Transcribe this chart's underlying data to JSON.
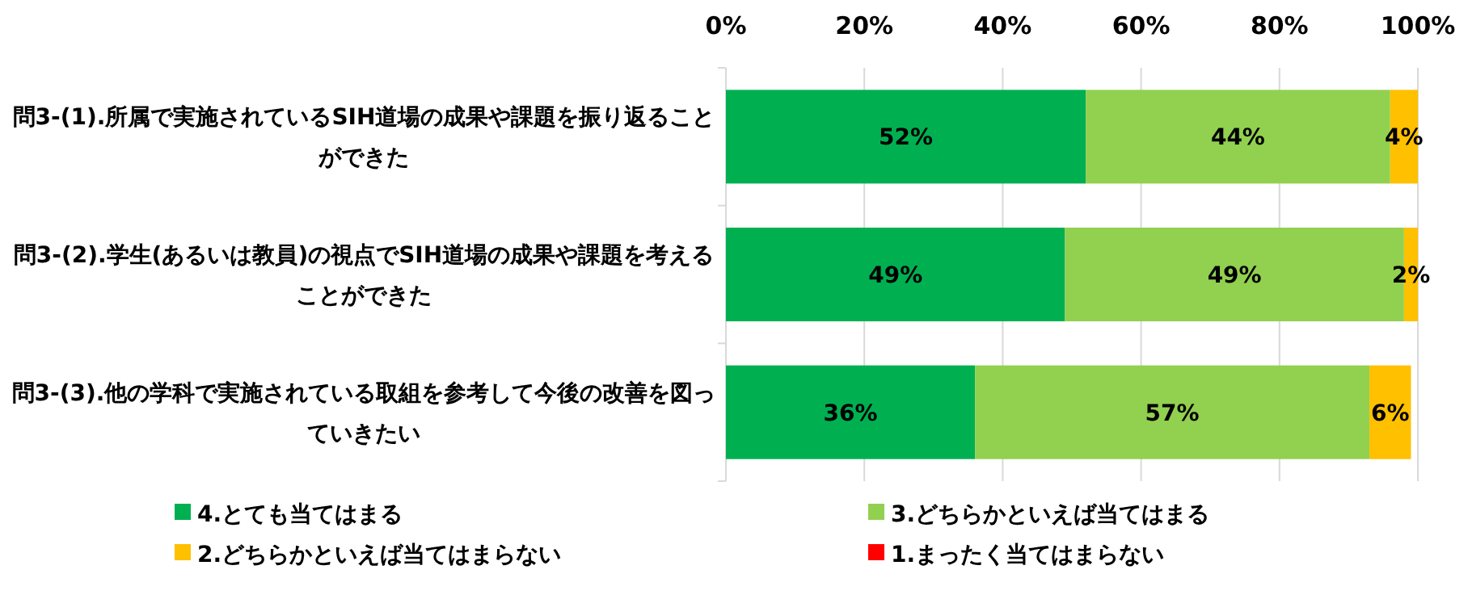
{
  "chart_data": {
    "type": "bar",
    "orientation": "horizontal",
    "stacked": true,
    "categories": [
      "問3-(1).所属で実施されているSIH道場の成果や課題を振り返ることができた",
      "問3-(2).学生(あるいは教員)の視点でSIH道場の成果や課題を考えることができた",
      "問3-(3).他の学科で実施されている取組を参考して今後の改善を図っていきたい"
    ],
    "series": [
      {
        "name": "4.とても当てはまる",
        "color": "#00b050",
        "values": [
          52,
          49,
          36
        ],
        "value_labels": [
          "52%",
          "49%",
          "36%"
        ]
      },
      {
        "name": "3.どちらかといえば当てはまる",
        "color": "#92d050",
        "values": [
          44,
          49,
          57
        ],
        "value_labels": [
          "44%",
          "49%",
          "57%"
        ]
      },
      {
        "name": "2.どちらかといえば当てはまらない",
        "color": "#ffc000",
        "values": [
          4,
          2,
          6
        ],
        "value_labels": [
          "4%",
          "2%",
          "6%"
        ]
      },
      {
        "name": "1.まったく当てはまらない",
        "color": "#ff0000",
        "values": [
          null,
          null,
          null
        ]
      }
    ],
    "xlim": [
      0,
      100
    ],
    "xticks": [
      {
        "value": 0,
        "label": "0%"
      },
      {
        "value": 20,
        "label": "20%"
      },
      {
        "value": 40,
        "label": "40%"
      },
      {
        "value": 60,
        "label": "60%"
      },
      {
        "value": 80,
        "label": "80%"
      },
      {
        "value": 100,
        "label": "100%"
      }
    ],
    "grid": "x",
    "legend": "bottom"
  }
}
